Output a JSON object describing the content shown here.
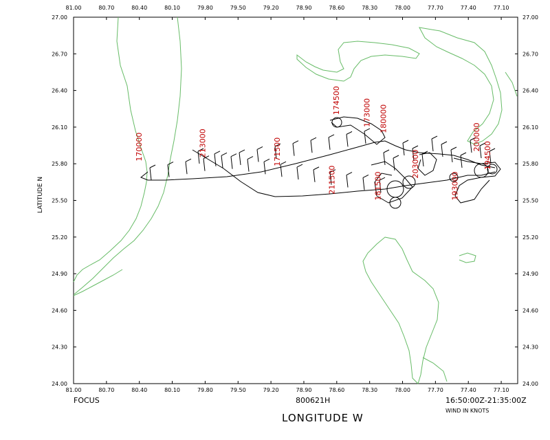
{
  "map": {
    "lon_ticks": [
      "81.00",
      "80.70",
      "80.40",
      "80.10",
      "79.80",
      "79.50",
      "79.20",
      "78.90",
      "78.60",
      "78.30",
      "78.00",
      "77.70",
      "77.40",
      "77.10"
    ],
    "lat_ticks": [
      "27.00",
      "26.70",
      "26.40",
      "26.10",
      "25.80",
      "25.50",
      "25.20",
      "24.90",
      "24.60",
      "24.30",
      "24.00"
    ],
    "lon_range": [
      81.0,
      76.95
    ],
    "lat_range": [
      24.0,
      27.0
    ],
    "coast_color": "#66bb66",
    "track_color": "#000000",
    "label_color": "#c00000"
  },
  "footer": {
    "left": "FOCUS",
    "center": "800621H",
    "right": "16:50:00Z-21:35:00Z",
    "wind_note": "WIND IN KNOTS"
  },
  "axes": {
    "x_title": "LONGITUDE   W",
    "y_title": "LATITUDE   N"
  },
  "flight_labels": [
    {
      "text": "170000",
      "lon": 80.38,
      "lat": 25.82
    },
    {
      "text": "213000",
      "lon": 79.8,
      "lat": 25.85
    },
    {
      "text": "171500",
      "lon": 79.12,
      "lat": 25.78
    },
    {
      "text": "211500",
      "lon": 78.62,
      "lat": 25.55
    },
    {
      "text": "174500",
      "lon": 78.58,
      "lat": 26.2
    },
    {
      "text": "173000",
      "lon": 78.3,
      "lat": 26.1
    },
    {
      "text": "180000",
      "lon": 78.15,
      "lat": 26.05
    },
    {
      "text": "181500",
      "lon": 78.2,
      "lat": 25.5
    },
    {
      "text": "203000",
      "lon": 77.86,
      "lat": 25.68
    },
    {
      "text": "200000",
      "lon": 77.3,
      "lat": 25.9
    },
    {
      "text": "194500",
      "lon": 77.2,
      "lat": 25.75
    },
    {
      "text": "193000",
      "lon": 77.5,
      "lat": 25.5
    }
  ]
}
